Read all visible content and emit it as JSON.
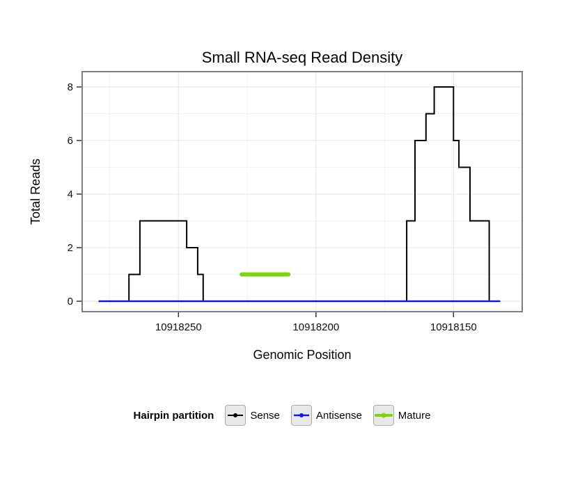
{
  "chart_data": {
    "type": "line",
    "subtype": "step-density",
    "title": "Small RNA-seq Read Density",
    "xlabel": "Genomic Position",
    "ylabel": "Total Reads",
    "x_axis": {
      "min": 10918125,
      "max": 10918285,
      "direction": "decreasing-left-to-right",
      "ticks": [
        10918250,
        10918200,
        10918150
      ],
      "minor_ticks": [
        10918275,
        10918225,
        10918175
      ]
    },
    "y_axis": {
      "min": 0,
      "max": 8,
      "ticks": [
        0,
        2,
        4,
        6,
        8
      ],
      "minor_ticks": [
        1,
        3,
        5,
        7
      ]
    },
    "grid": true,
    "panel_border_color": "#7f7f7f",
    "gridline_major_color": "#e4e4e4",
    "gridline_minor_color": "#f4f4f4",
    "legend": {
      "title": "Hairpin partition",
      "position": "bottom",
      "entries": [
        "Sense",
        "Antisense",
        "Mature"
      ]
    },
    "series": [
      {
        "name": "Sense",
        "color": "#000000",
        "width": 2,
        "linecap": "butt",
        "points": [
          [
            10918279,
            0
          ],
          [
            10918268,
            0
          ],
          [
            10918268,
            1
          ],
          [
            10918264,
            1
          ],
          [
            10918264,
            3
          ],
          [
            10918247,
            3
          ],
          [
            10918247,
            2
          ],
          [
            10918243,
            2
          ],
          [
            10918243,
            1
          ],
          [
            10918241,
            1
          ],
          [
            10918241,
            0
          ],
          [
            10918167,
            0
          ],
          [
            10918167,
            3
          ],
          [
            10918164,
            3
          ],
          [
            10918164,
            6
          ],
          [
            10918160,
            6
          ],
          [
            10918160,
            7
          ],
          [
            10918157,
            7
          ],
          [
            10918157,
            8
          ],
          [
            10918150,
            8
          ],
          [
            10918150,
            6
          ],
          [
            10918148,
            6
          ],
          [
            10918148,
            5
          ],
          [
            10918144,
            5
          ],
          [
            10918144,
            3
          ],
          [
            10918137,
            3
          ],
          [
            10918137,
            0
          ],
          [
            10918133,
            0
          ]
        ]
      },
      {
        "name": "Antisense",
        "color": "#1616e0",
        "width": 2.5,
        "linecap": "butt",
        "points": [
          [
            10918279,
            0
          ],
          [
            10918133,
            0
          ]
        ]
      },
      {
        "name": "Mature",
        "color": "#7dd50c",
        "width": 6,
        "linecap": "round",
        "points": [
          [
            10918227,
            1
          ],
          [
            10918210,
            1
          ]
        ]
      }
    ]
  }
}
